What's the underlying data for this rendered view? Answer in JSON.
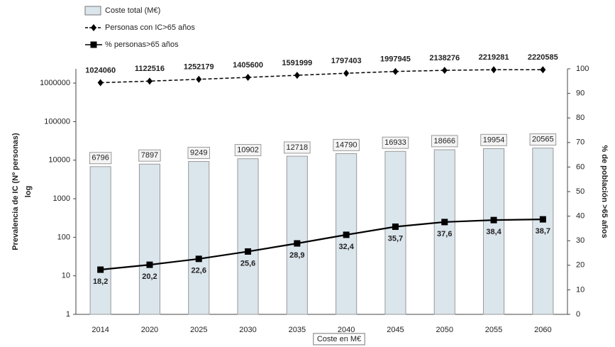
{
  "chart_data": {
    "type": "bar-line",
    "categories": [
      "2014",
      "2020",
      "2025",
      "2030",
      "2035",
      "2040",
      "2045",
      "2050",
      "2055",
      "2060"
    ],
    "series": [
      {
        "name": "Coste total (M€)",
        "type": "bar",
        "color": "#dbe5ec",
        "values": [
          6796,
          7897,
          9249,
          10902,
          12718,
          14790,
          16933,
          18666,
          19954,
          20565
        ]
      },
      {
        "name": "Personas con IC>65 años",
        "type": "line",
        "dash": true,
        "marker": "diamond",
        "color": "#000000",
        "values": [
          1024060,
          1122516,
          1252179,
          1405600,
          1591999,
          1797403,
          1997945,
          2138276,
          2219281,
          2220585
        ]
      },
      {
        "name": "% personas>65 años",
        "type": "line",
        "dash": false,
        "marker": "square",
        "color": "#000000",
        "axis": "y2",
        "values": [
          18.2,
          20.2,
          22.6,
          25.6,
          28.9,
          32.4,
          35.7,
          37.6,
          38.4,
          38.7
        ],
        "value_labels": [
          "18,2",
          "20,2",
          "22,6",
          "25,6",
          "28,9",
          "32,4",
          "35,7",
          "37,6",
          "38,4",
          "38,7"
        ]
      }
    ],
    "xlabel": "Coste en  M€",
    "ylabel": [
      "Prevalencia de IC (Nº personas)",
      "log"
    ],
    "y2label": "% de población >65 años",
    "ylog": true,
    "ylim": [
      1,
      2340000
    ],
    "yticks": [
      1,
      10,
      100,
      1000,
      10000,
      100000,
      1000000
    ],
    "y2lim": [
      0,
      100
    ],
    "y2ticks": [
      0,
      10,
      20,
      30,
      40,
      50,
      60,
      70,
      80,
      90,
      100
    ],
    "legend": "top-left"
  }
}
